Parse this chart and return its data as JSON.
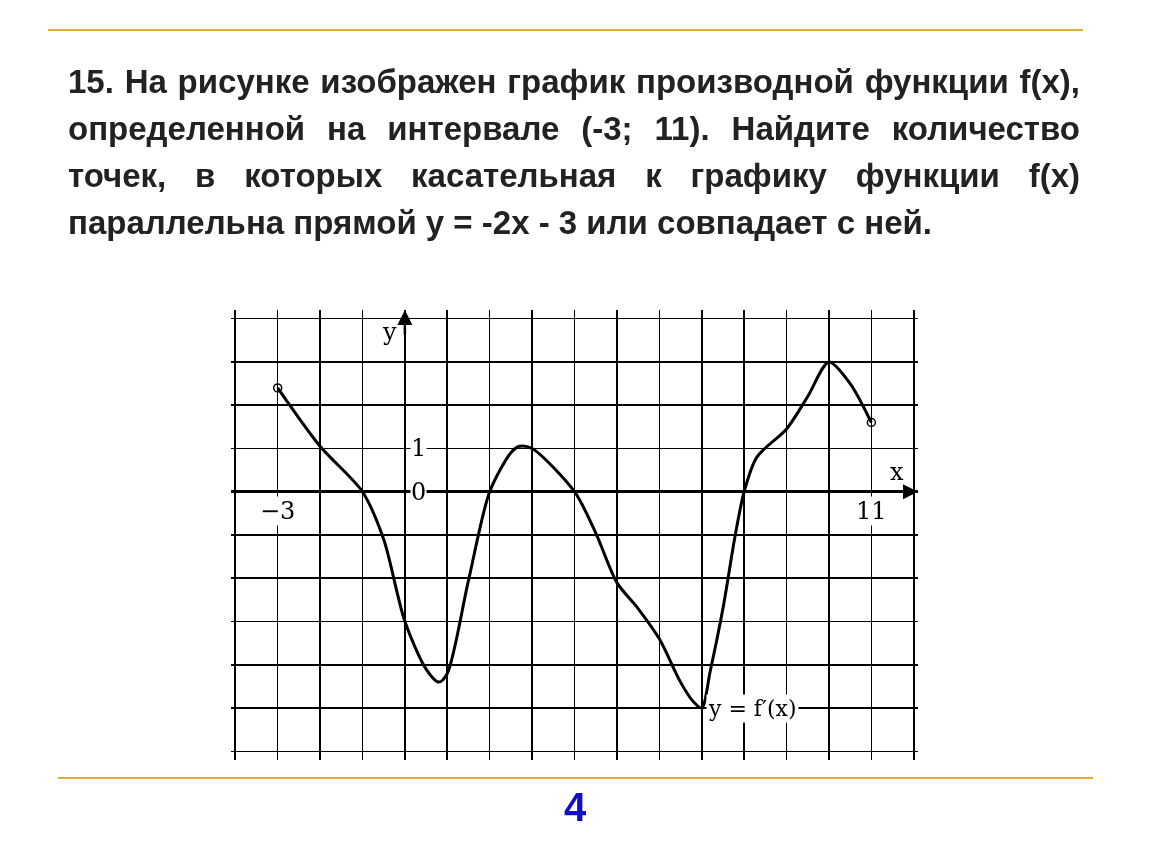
{
  "chart_data": {
    "type": "line",
    "title": "15. На рисунке изображен график производной функции f(x), определенной на интервале (-3; 11). Найдите количество точек, в которых касательная к графику функции f(x) параллельна прямой y = -2x - 3 или совпадает с ней.",
    "xlabel": "x",
    "ylabel": "y",
    "annotations": [
      {
        "text": "y = f′(x)",
        "x": 7,
        "y": -5
      },
      "4"
    ],
    "xlim": [
      -4.1,
      12.1
    ],
    "ylim": [
      -6.2,
      4.2
    ],
    "xticks": [
      {
        "value": -4,
        "label": null
      },
      {
        "value": -3,
        "label": "−3"
      },
      {
        "value": -2,
        "label": null
      },
      {
        "value": -1,
        "label": null
      },
      {
        "value": 0,
        "label": null
      },
      {
        "value": 1,
        "label": null
      },
      {
        "value": 2,
        "label": null
      },
      {
        "value": 3,
        "label": null
      },
      {
        "value": 4,
        "label": null
      },
      {
        "value": 5,
        "label": null
      },
      {
        "value": 6,
        "label": null
      },
      {
        "value": 7,
        "label": null
      },
      {
        "value": 8,
        "label": null
      },
      {
        "value": 9,
        "label": null
      },
      {
        "value": 10,
        "label": null
      },
      {
        "value": 11,
        "label": "11"
      },
      {
        "value": 12,
        "label": null
      }
    ],
    "yticks": [
      {
        "value": -6,
        "label": null
      },
      {
        "value": -5,
        "label": null
      },
      {
        "value": -4,
        "label": null
      },
      {
        "value": -3,
        "label": null
      },
      {
        "value": -2,
        "label": null
      },
      {
        "value": -1,
        "label": null
      },
      {
        "value": 0,
        "label": "0"
      },
      {
        "value": 1,
        "label": "1"
      },
      {
        "value": 2,
        "label": null
      },
      {
        "value": 3,
        "label": null
      },
      {
        "value": 4,
        "label": null
      }
    ],
    "grid": true,
    "line_style": "solid",
    "series": [
      {
        "color": "#000000",
        "x": [
          -3,
          -2,
          -1,
          -0.5,
          0,
          0.5,
          0.8,
          1,
          1.5,
          2,
          2.5,
          2.7,
          3,
          4,
          4.5,
          5,
          5.5,
          6,
          6.5,
          6.8,
          7,
          7.2,
          7.5,
          7.8,
          8,
          8.3,
          9,
          9.5,
          10,
          10.5,
          11
        ],
        "values": [
          2.4,
          1.05,
          0,
          -1.1,
          -3,
          -4.1,
          -4.4,
          -4.2,
          -2.05,
          0,
          0.9,
          1.05,
          1,
          0,
          -0.95,
          -2.1,
          -2.7,
          -3.4,
          -4.4,
          -4.85,
          -5,
          -4.15,
          -2.7,
          -0.95,
          0,
          0.8,
          1.45,
          2.2,
          3,
          2.5,
          1.6
        ]
      },
      {
        "type": "scatter",
        "marker": "circle",
        "color": "#000000",
        "x": [
          -3,
          11
        ],
        "values": [
          2.4,
          1.6
        ]
      }
    ]
  }
}
